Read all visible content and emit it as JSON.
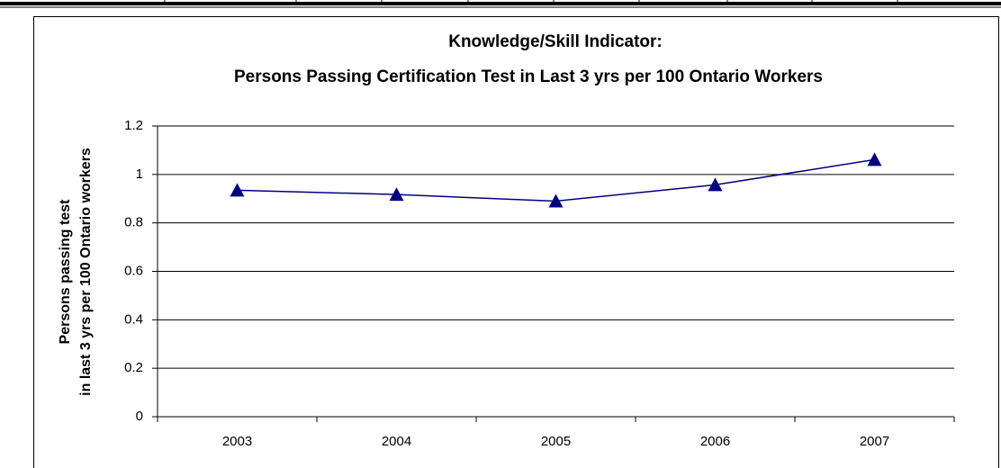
{
  "chart_data": {
    "type": "line",
    "title": [
      "Knowledge/Skill Indicator:",
      "Persons Passing Certification Test in Last 3 yrs per 100 Ontario Workers"
    ],
    "y_label": [
      "Persons passing test",
      "in last 3 yrs per 100 Ontario workers"
    ],
    "categories": [
      "2003",
      "2004",
      "2005",
      "2006",
      "2007"
    ],
    "series": [
      {
        "name": "Persons passing test",
        "color": "#000080",
        "values": [
          0.935,
          0.917,
          0.89,
          0.957,
          1.061
        ]
      }
    ],
    "ylim": [
      0,
      1.2
    ],
    "yticks": [
      0,
      0.2,
      0.4,
      0.6,
      0.8,
      1,
      1.2
    ],
    "grid": true
  }
}
